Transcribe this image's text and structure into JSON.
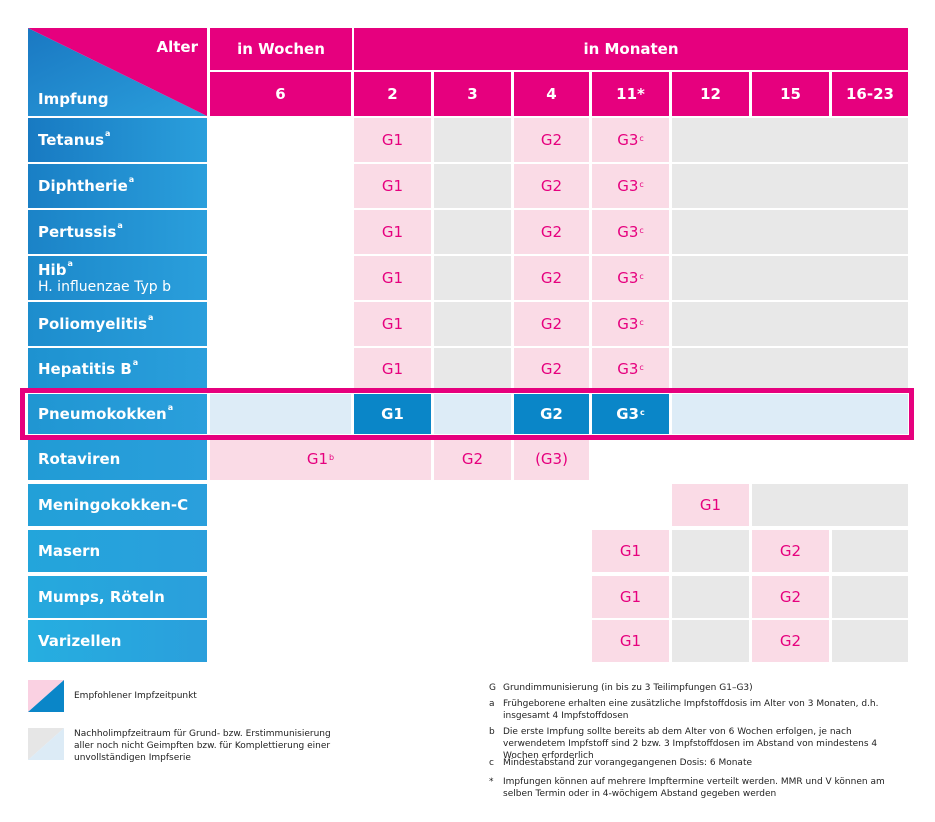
{
  "header": {
    "corner_top": "Alter",
    "corner_bottom": "Impfung",
    "weeks": "in Wochen",
    "months": "in Monaten",
    "ages": [
      "6",
      "2",
      "3",
      "4",
      "11*",
      "12",
      "15",
      "16-23"
    ]
  },
  "rows": [
    {
      "name": "Tetanus",
      "note": "a",
      "cells": [
        {
          "text": "G1"
        },
        {
          "text": "G2"
        },
        {
          "text": "G3",
          "note": "c"
        }
      ]
    },
    {
      "name": "Diphtherie",
      "note": "a",
      "cells": [
        {
          "text": "G1"
        },
        {
          "text": "G2"
        },
        {
          "text": "G3",
          "note": "c"
        }
      ]
    },
    {
      "name": "Pertussis",
      "note": "a",
      "cells": [
        {
          "text": "G1"
        },
        {
          "text": "G2"
        },
        {
          "text": "G3",
          "note": "c"
        }
      ]
    },
    {
      "name": "Hib",
      "note": "a",
      "subtitle": "H. influenzae Typ b",
      "cells": [
        {
          "text": "G1"
        },
        {
          "text": "G2"
        },
        {
          "text": "G3",
          "note": "c"
        }
      ]
    },
    {
      "name": "Poliomyelitis",
      "note": "a",
      "cells": [
        {
          "text": "G1"
        },
        {
          "text": "G2"
        },
        {
          "text": "G3",
          "note": "c"
        }
      ]
    },
    {
      "name": "Hepatitis B",
      "note": "a",
      "cells": [
        {
          "text": "G1"
        },
        {
          "text": "G2"
        },
        {
          "text": "G3",
          "note": "c"
        }
      ]
    },
    {
      "name": "Pneumokokken",
      "note": "a",
      "cells": [
        {
          "text": "G1"
        },
        {
          "text": "G2"
        },
        {
          "text": "G3",
          "note": "c"
        }
      ]
    },
    {
      "name": "Rotaviren",
      "cells": [
        {
          "text": "G1",
          "note": "b"
        },
        {
          "text": "G2"
        },
        {
          "text": "(G3)"
        }
      ]
    },
    {
      "name": "Meningokokken-C",
      "cells": [
        {
          "text": "G1"
        }
      ]
    },
    {
      "name": "Masern",
      "cells": [
        {
          "text": "G1"
        },
        {
          "text": "G2"
        }
      ]
    },
    {
      "name": "Mumps, Röteln",
      "cells": [
        {
          "text": "G1"
        },
        {
          "text": "G2"
        }
      ]
    },
    {
      "name": "Varizellen",
      "cells": [
        {
          "text": "G1"
        },
        {
          "text": "G2"
        }
      ]
    }
  ],
  "legend": [
    {
      "text": "Empfohlener Impfzeitpunkt"
    },
    {
      "text": "Nachholimpfzeitraum für Grund- bzw. Erstimmunisierung aller noch nicht Geimpften bzw. für Komplettierung einer unvollständigen Impfserie"
    }
  ],
  "footnotes": [
    {
      "key": "G",
      "text": "Grundimmunisierung (in bis zu 3 Teilimpfungen G1–G3)"
    },
    {
      "key": "a",
      "text": "Frühgeborene erhalten eine zusätzliche Impfstoffdosis im Alter von 3 Monaten, d.h. insgesamt 4 Impfstoffdosen"
    },
    {
      "key": "b",
      "text": "Die erste Impfung sollte bereits ab dem Alter von 6 Wochen erfolgen, je nach verwendetem Impfstoff sind 2 bzw. 3 Impfstoffdosen im Abstand von mindestens 4 Wochen erforderlich"
    },
    {
      "key": "c",
      "text": "Mindestabstand zur vorangegangenen Dosis: 6 Monate"
    },
    {
      "key": "*",
      "text": "Impfungen können auf mehrere Impftermine verteilt werden. MMR und V können am selben Termin oder in 4-wöchigem Abstand gegeben werden"
    }
  ]
}
